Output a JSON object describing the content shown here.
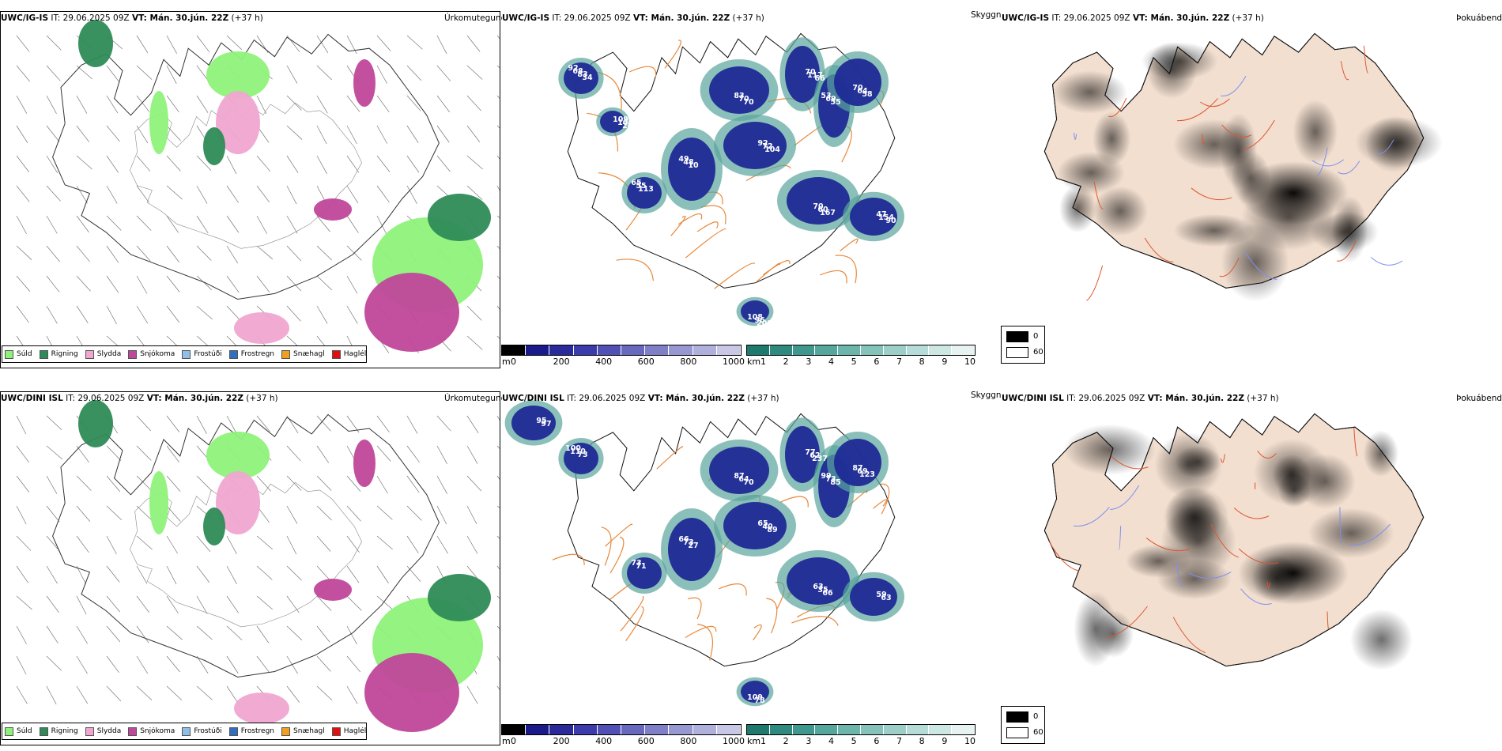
{
  "rows": [
    {
      "model": "UWC/IG-IS",
      "precip": {
        "title_model": "UWC/IG-IS",
        "title_it": " IT: 29.06.2025 09Z ",
        "title_vt_label": "VT: Mán. 30.jún. 22Z",
        "title_lead": " (+37 h)",
        "type": "Úrkomutegund"
      },
      "cloud": {
        "title_model": "UWC/IG-IS",
        "title_it": " IT: 29.06.2025 09Z ",
        "title_vt_label": "VT: Mán. 30.jún. 22Z",
        "title_lead": " (+37 h)",
        "type": "Skyggni",
        "labels": [
          "92",
          "83",
          "70",
          "53",
          "70",
          "92",
          "49",
          "70",
          "47",
          "65",
          "108",
          "109",
          "68",
          "70",
          "117",
          "69",
          "64",
          "72",
          "48",
          "60",
          "154",
          "55",
          "96",
          "104",
          "83",
          "70",
          "66",
          "55",
          "58",
          "104",
          "10",
          "167",
          "90",
          "113",
          "208",
          "261",
          "34"
        ]
      },
      "fog": {
        "title_model": "UWC/IG-IS",
        "title_it": " IT: 29.06.2025 09Z ",
        "title_vt_label": "VT: Mán. 30.jún. 22Z",
        "title_lead": " (+37 h)",
        "type": "Þokuábendi"
      }
    },
    {
      "model": "UWC/DINI ISL",
      "precip": {
        "title_model": "UWC/DINI ISL",
        "title_it": " IT: 29.06.2025 09Z ",
        "title_vt_label": "VT: Mán. 30.jún. 22Z",
        "title_lead": " (+37 h)",
        "type": "Úrkomutegund"
      },
      "cloud": {
        "title_model": "UWC/DINI ISL",
        "title_it": " IT: 29.06.2025 09Z ",
        "title_vt_label": "VT: Mán. 30.jún. 22Z",
        "title_lead": " (+37 h)",
        "type": "Skyggni",
        "labels": [
          "100",
          "87",
          "77",
          "99",
          "87",
          "65",
          "66",
          "63",
          "59",
          "73",
          "109",
          "95",
          "110",
          "64",
          "62",
          "73",
          "69",
          "40",
          "73",
          "35",
          "63",
          "71",
          "78",
          "97",
          "73",
          "70",
          "237",
          "85",
          "123",
          "89",
          "27",
          "66"
        ]
      },
      "fog": {
        "title_model": "UWC/DINI ISL",
        "title_it": " IT: 29.06.2025 09Z ",
        "title_vt_label": "VT: Mán. 30.jún. 22Z",
        "title_lead": " (+37 h)",
        "type": "Þokuábendi"
      }
    }
  ],
  "precip_legend": [
    {
      "label": "Súld",
      "color": "#8ef27a"
    },
    {
      "label": "Rigning",
      "color": "#2e8b57"
    },
    {
      "label": "Slydda",
      "color": "#f0a6d0"
    },
    {
      "label": "Snjókoma",
      "color": "#c0479a"
    },
    {
      "label": "Frostúði",
      "color": "#8fbfe8"
    },
    {
      "label": "Frostregn",
      "color": "#2f6fbf"
    },
    {
      "label": "Snæhagl",
      "color": "#f0a020"
    },
    {
      "label": "Haglél",
      "color": "#e01010"
    }
  ],
  "cbar_m": {
    "unit": "m",
    "ticks": [
      "0",
      "200",
      "400",
      "600",
      "800",
      "1000"
    ],
    "colors": [
      "#000000",
      "#1a1a8a",
      "#2a2a9a",
      "#3b3bab",
      "#5050b5",
      "#6868bf",
      "#7f7fc8",
      "#9797d2",
      "#b0b0dc",
      "#c8c8e6"
    ]
  },
  "cbar_km": {
    "unit": "km",
    "ticks": [
      "1",
      "2",
      "3",
      "4",
      "5",
      "6",
      "7",
      "8",
      "9",
      "10"
    ],
    "colors": [
      "#1f7a6e",
      "#2e8a7e",
      "#3f988d",
      "#55a79c",
      "#6cb5ab",
      "#85c2b9",
      "#9ccfc7",
      "#b5dcd6",
      "#cde8e3",
      "#e6f3f1"
    ]
  },
  "fog_legend": {
    "values": [
      "0",
      "60"
    ],
    "colors": [
      "#000000",
      "#ffffff"
    ]
  }
}
